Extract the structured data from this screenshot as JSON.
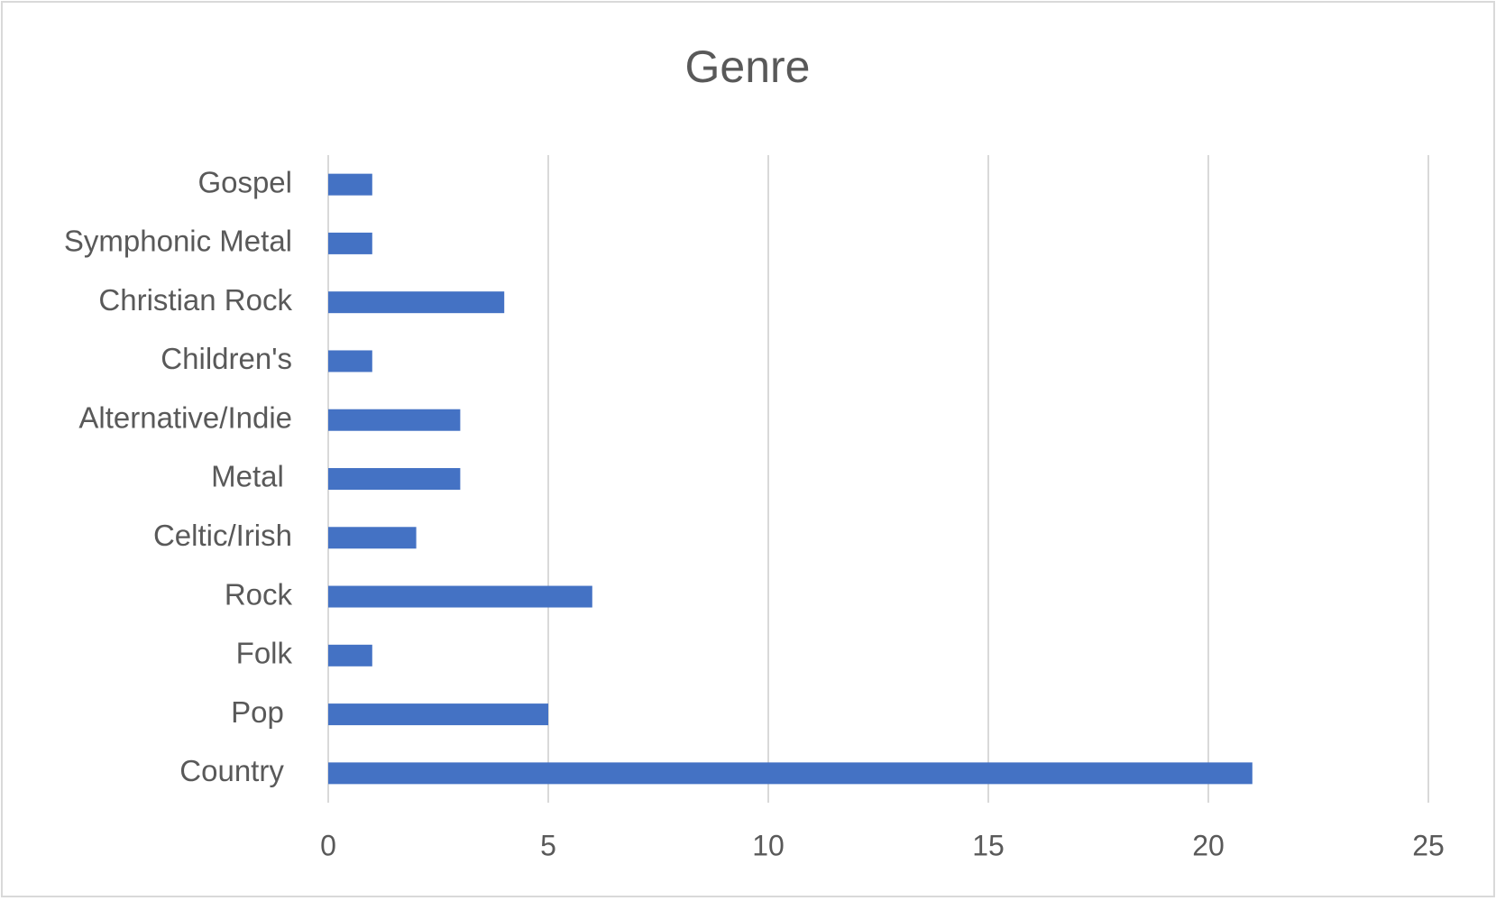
{
  "chart_data": {
    "type": "bar",
    "orientation": "horizontal",
    "title": "Genre",
    "categories": [
      "Country ",
      "Pop ",
      "Folk",
      "Rock",
      "Celtic/Irish",
      "Metal ",
      "Alternative/Indie",
      "Children's",
      "Christian Rock",
      "Symphonic Metal",
      "Gospel"
    ],
    "values": [
      21,
      5,
      1,
      6,
      2,
      3,
      3,
      1,
      4,
      1,
      1
    ],
    "color": "#4472c4",
    "xlim": [
      0,
      25
    ],
    "xticks": [
      0,
      5,
      10,
      15,
      20,
      25
    ],
    "grid": true
  }
}
